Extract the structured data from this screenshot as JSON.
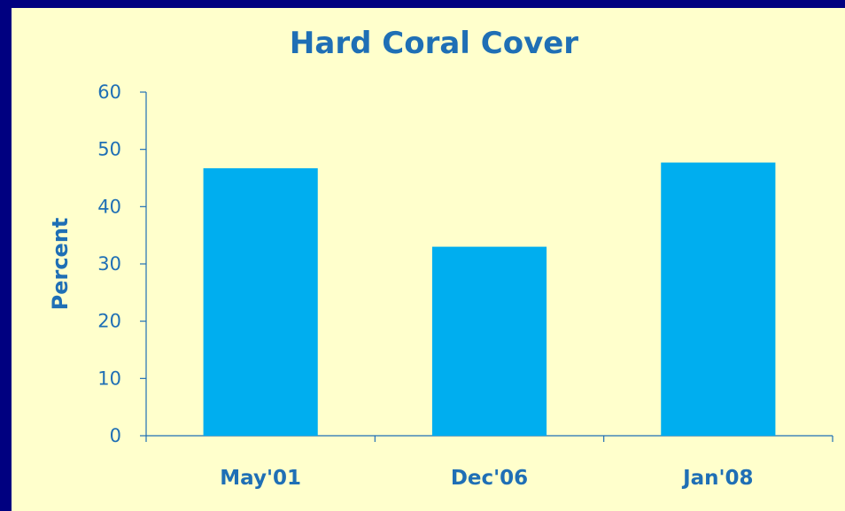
{
  "chart_data": {
    "type": "bar",
    "title": "Hard Coral Cover",
    "xlabel": "",
    "ylabel": "Percent",
    "categories": [
      "May'01",
      "Dec'06",
      "Jan'08"
    ],
    "values": [
      46.7,
      33.0,
      47.7
    ],
    "ylim": [
      0,
      60
    ],
    "yticks": [
      0,
      10,
      20,
      30,
      40,
      50,
      60
    ],
    "grid": false,
    "legend": "none"
  },
  "colors": {
    "background": "#000080",
    "panel": "#FFFFCC",
    "bar": "#00AEEF",
    "text": "#1F6FB5",
    "axis": "#1F6FB5"
  }
}
